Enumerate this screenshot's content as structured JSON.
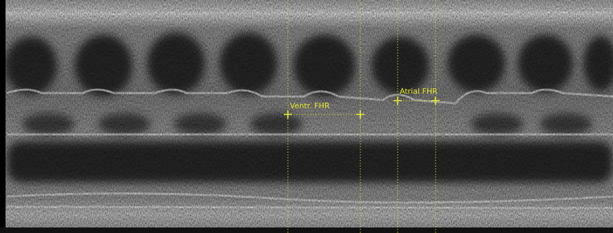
{
  "annotations": [
    {
      "label": "Ventr. FHR"
    },
    {
      "label": "Atrial FHR"
    }
  ]
}
